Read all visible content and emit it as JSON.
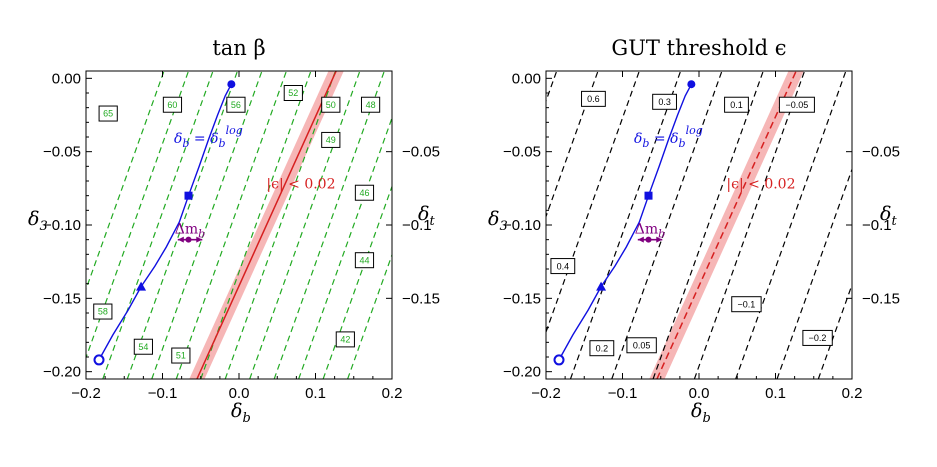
{
  "colors": {
    "tan_beta_contour": "#22aa22",
    "eps_contour": "#000000",
    "band_fill": "#f6b6b6",
    "band_line": "#d62020",
    "log_curve": "#1010e0",
    "dmb_marker": "#800080"
  },
  "chart_data": [
    {
      "type": "contour",
      "title": "tan β",
      "xlabel": "δ_b",
      "ylabel": "δ_3",
      "y2label": "δ_t",
      "xlim": [
        -0.2,
        0.2
      ],
      "ylim": [
        -0.205,
        0.005
      ],
      "x_ticks": [
        "−0.2",
        "−0.1",
        "0.0",
        "0.1",
        "0.2"
      ],
      "y_ticks": [
        "0.00",
        "−0.05",
        "−0.10",
        "−0.15",
        "−0.20"
      ],
      "y2_ticks": [
        "−0.05",
        "−0.1",
        "−0.15"
      ],
      "contour_label_color": "tan_beta_contour",
      "contour_lines": [
        {
          "x": [
            -0.242,
            -0.098
          ],
          "y": [
            -0.205,
            0.005
          ]
        },
        {
          "x": [
            -0.21,
            -0.066
          ],
          "y": [
            -0.205,
            0.005
          ]
        },
        {
          "x": [
            -0.178,
            -0.034
          ],
          "y": [
            -0.205,
            0.005
          ]
        },
        {
          "x": [
            -0.146,
            -0.002
          ],
          "y": [
            -0.205,
            0.005
          ]
        },
        {
          "x": [
            -0.114,
            0.03
          ],
          "y": [
            -0.205,
            0.005
          ]
        },
        {
          "x": [
            -0.082,
            0.062
          ],
          "y": [
            -0.205,
            0.005
          ]
        },
        {
          "x": [
            -0.05,
            0.094
          ],
          "y": [
            -0.205,
            0.005
          ]
        },
        {
          "x": [
            -0.018,
            0.126
          ],
          "y": [
            -0.205,
            0.005
          ]
        },
        {
          "x": [
            0.014,
            0.158
          ],
          "y": [
            -0.205,
            0.005
          ]
        },
        {
          "x": [
            0.046,
            0.19
          ],
          "y": [
            -0.205,
            0.005
          ]
        },
        {
          "x": [
            0.078,
            0.222
          ],
          "y": [
            -0.205,
            0.005
          ]
        },
        {
          "x": [
            0.11,
            0.254
          ],
          "y": [
            -0.205,
            0.005
          ]
        },
        {
          "x": [
            0.142,
            0.286
          ],
          "y": [
            -0.205,
            0.005
          ]
        }
      ],
      "contour_labels": [
        {
          "text": "65",
          "x": -0.171,
          "y": -0.024
        },
        {
          "text": "60",
          "x": -0.087,
          "y": -0.018
        },
        {
          "text": "56",
          "x": -0.004,
          "y": -0.018
        },
        {
          "text": "52",
          "x": 0.071,
          "y": -0.01
        },
        {
          "text": "50",
          "x": 0.12,
          "y": -0.018
        },
        {
          "text": "48",
          "x": 0.172,
          "y": -0.018
        },
        {
          "text": "49",
          "x": 0.12,
          "y": -0.042
        },
        {
          "text": "46",
          "x": 0.164,
          "y": -0.078
        },
        {
          "text": "44",
          "x": 0.164,
          "y": -0.124
        },
        {
          "text": "42",
          "x": 0.139,
          "y": -0.178
        },
        {
          "text": "58",
          "x": -0.178,
          "y": -0.159
        },
        {
          "text": "54",
          "x": -0.125,
          "y": -0.183
        },
        {
          "text": "51",
          "x": -0.076,
          "y": -0.189
        }
      ],
      "band": {
        "x_bottom": [
          -0.065,
          -0.045
        ],
        "x_top": [
          0.117,
          0.137
        ],
        "center": [
          -0.055,
          0.127
        ],
        "line_style": "solid"
      },
      "band_label": "|ϵ| < 0.02",
      "log_curve": {
        "label": "δ_b = δ_b^log",
        "x": [
          -0.183,
          -0.165,
          -0.145,
          -0.128,
          -0.11,
          -0.095,
          -0.078,
          -0.066,
          -0.052,
          -0.04,
          -0.028,
          -0.018,
          -0.01
        ],
        "y": [
          -0.192,
          -0.175,
          -0.158,
          -0.142,
          -0.128,
          -0.115,
          -0.098,
          -0.08,
          -0.06,
          -0.042,
          -0.025,
          -0.012,
          -0.004
        ],
        "markers": [
          {
            "shape": "circle",
            "x": -0.01,
            "y": -0.004
          },
          {
            "shape": "square",
            "x": -0.066,
            "y": -0.08
          },
          {
            "shape": "triangle",
            "x": -0.128,
            "y": -0.142
          },
          {
            "shape": "open-circle",
            "x": -0.183,
            "y": -0.192
          }
        ]
      },
      "dmb": {
        "label": "Δm_b",
        "x_from": -0.08,
        "x_to": -0.048,
        "y": -0.11,
        "dot_x": -0.066
      }
    },
    {
      "type": "contour",
      "title": "GUT threshold ϵ",
      "xlabel": "δ_b",
      "ylabel": "δ_3",
      "y2label": "δ_t",
      "xlim": [
        -0.2,
        0.2
      ],
      "ylim": [
        -0.205,
        0.005
      ],
      "x_ticks": [
        "−0.2",
        "−0.1",
        "0.0",
        "0.1",
        "0.2"
      ],
      "y_ticks": [
        "0.00",
        "−0.05",
        "−0.10",
        "−0.15",
        "−0.20"
      ],
      "y2_ticks": [
        "−0.05",
        "−0.1",
        "−0.15"
      ],
      "contour_label_color": "eps_contour",
      "contour_lines": [
        {
          "x": [
            -0.33,
            -0.186
          ],
          "y": [
            -0.205,
            0.005
          ]
        },
        {
          "x": [
            -0.276,
            -0.132
          ],
          "y": [
            -0.205,
            0.005
          ]
        },
        {
          "x": [
            -0.222,
            -0.078
          ],
          "y": [
            -0.205,
            0.005
          ]
        },
        {
          "x": [
            -0.168,
            -0.024
          ],
          "y": [
            -0.205,
            0.005
          ]
        },
        {
          "x": [
            -0.114,
            0.03
          ],
          "y": [
            -0.205,
            0.005
          ]
        },
        {
          "x": [
            -0.06,
            0.084
          ],
          "y": [
            -0.205,
            0.005
          ]
        },
        {
          "x": [
            -0.006,
            0.138
          ],
          "y": [
            -0.205,
            0.005
          ]
        },
        {
          "x": [
            0.048,
            0.192
          ],
          "y": [
            -0.205,
            0.005
          ]
        },
        {
          "x": [
            0.102,
            0.246
          ],
          "y": [
            -0.205,
            0.005
          ]
        },
        {
          "x": [
            0.156,
            0.3
          ],
          "y": [
            -0.205,
            0.005
          ]
        }
      ],
      "contour_labels": [
        {
          "text": "0.6",
          "x": -0.138,
          "y": -0.014
        },
        {
          "text": "0.3",
          "x": -0.045,
          "y": -0.016
        },
        {
          "text": "0.1",
          "x": 0.049,
          "y": -0.018
        },
        {
          "text": "−0.05",
          "x": 0.128,
          "y": -0.018
        },
        {
          "text": "0.4",
          "x": -0.178,
          "y": -0.128
        },
        {
          "text": "0.2",
          "x": -0.127,
          "y": -0.184
        },
        {
          "text": "0.05",
          "x": -0.075,
          "y": -0.182
        },
        {
          "text": "−0.1",
          "x": 0.062,
          "y": -0.154
        },
        {
          "text": "−0.2",
          "x": 0.155,
          "y": -0.177
        }
      ],
      "band": {
        "x_bottom": [
          -0.065,
          -0.045
        ],
        "x_top": [
          0.117,
          0.137
        ],
        "center": [
          -0.055,
          0.127
        ],
        "line_style": "dashed"
      },
      "band_label": "|ϵ| < 0.02",
      "log_curve": {
        "label": "δ_b = δ_b^log",
        "x": [
          -0.183,
          -0.165,
          -0.145,
          -0.128,
          -0.11,
          -0.095,
          -0.078,
          -0.066,
          -0.052,
          -0.04,
          -0.028,
          -0.018,
          -0.01
        ],
        "y": [
          -0.192,
          -0.175,
          -0.158,
          -0.142,
          -0.128,
          -0.115,
          -0.098,
          -0.08,
          -0.06,
          -0.042,
          -0.025,
          -0.012,
          -0.004
        ],
        "markers": [
          {
            "shape": "circle",
            "x": -0.01,
            "y": -0.004
          },
          {
            "shape": "square",
            "x": -0.066,
            "y": -0.08
          },
          {
            "shape": "triangle",
            "x": -0.128,
            "y": -0.142
          },
          {
            "shape": "open-circle",
            "x": -0.183,
            "y": -0.192
          }
        ]
      },
      "dmb": {
        "label": "Δm_b",
        "x_from": -0.08,
        "x_to": -0.048,
        "y": -0.11,
        "dot_x": -0.066
      }
    }
  ]
}
